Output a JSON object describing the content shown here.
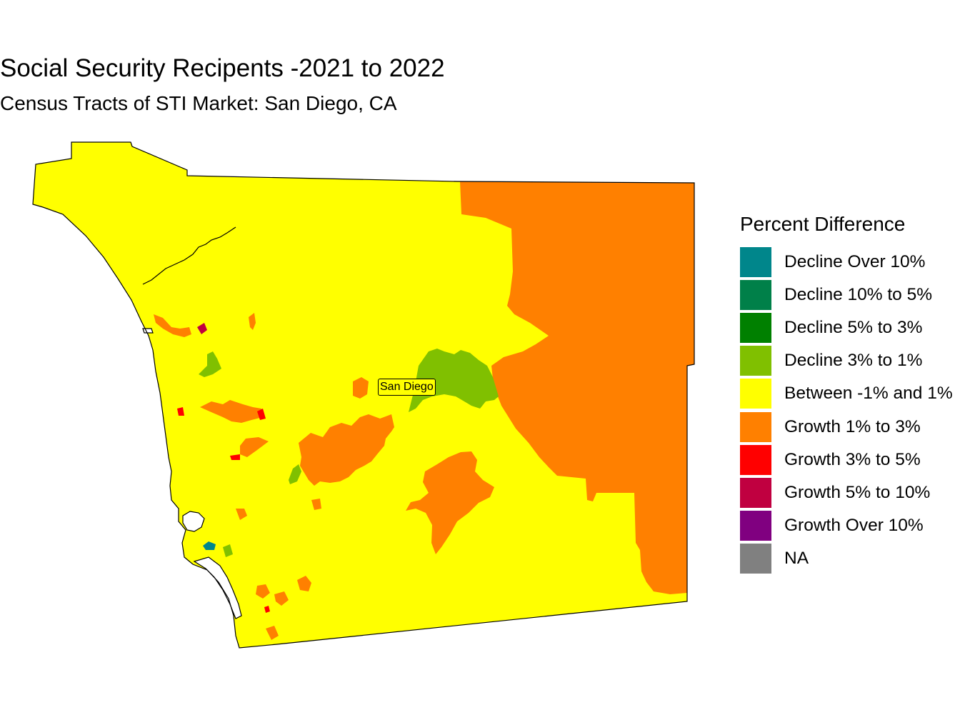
{
  "title": "Social Security Recipents -2021 to 2022",
  "subtitle": "Census Tracts of STI Market: San Diego, CA",
  "legend": {
    "title": "Percent Difference",
    "items": [
      {
        "label": "Decline Over 10%",
        "color": "#00868b"
      },
      {
        "label": "Decline 10% to 5%",
        "color": "#008049"
      },
      {
        "label": "Decline 5% to 3%",
        "color": "#008000"
      },
      {
        "label": "Decline 3% to 1%",
        "color": "#80c000"
      },
      {
        "label": "Between -1% and 1%",
        "color": "#ffff00"
      },
      {
        "label": "Growth 1% to 3%",
        "color": "#ff8000"
      },
      {
        "label": "Growth 3% to 5%",
        "color": "#ff0000"
      },
      {
        "label": "Growth 5% to 10%",
        "color": "#c00040"
      },
      {
        "label": "Growth Over 10%",
        "color": "#800080"
      },
      {
        "label": "NA",
        "color": "#808080"
      }
    ]
  },
  "map": {
    "city_label": "San Diego",
    "region_colors": {
      "base": "#ffff00",
      "east": "#ff8000",
      "decline": "#80c000",
      "growth_high": "#ff0000",
      "growth_very_high": "#c00040",
      "decline_strong": "#00868b",
      "water": "#ffffff"
    }
  }
}
